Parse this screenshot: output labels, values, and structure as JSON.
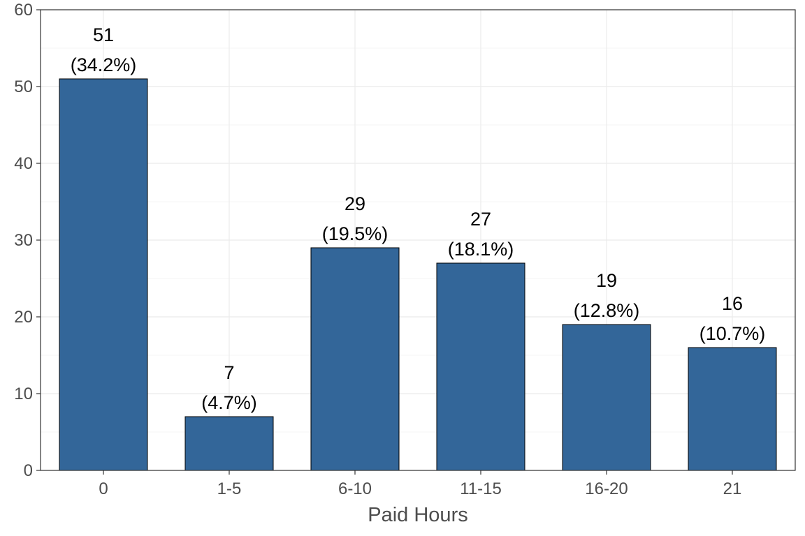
{
  "chart_data": {
    "type": "bar",
    "xlabel": "Paid Hours",
    "ylabel": "",
    "ylim": [
      0,
      60
    ],
    "yticks": [
      0,
      10,
      20,
      30,
      40,
      50,
      60
    ],
    "grid": true,
    "categories": [
      "0",
      "1-5",
      "6-10",
      "11-15",
      "16-20",
      "21"
    ],
    "values": [
      51,
      7,
      29,
      27,
      19,
      16
    ],
    "percent_labels": [
      "(34.2%)",
      "(4.7%)",
      "(19.5%)",
      "(18.1%)",
      "(12.8%)",
      "(10.7%)"
    ],
    "bar_color": "#336699"
  }
}
